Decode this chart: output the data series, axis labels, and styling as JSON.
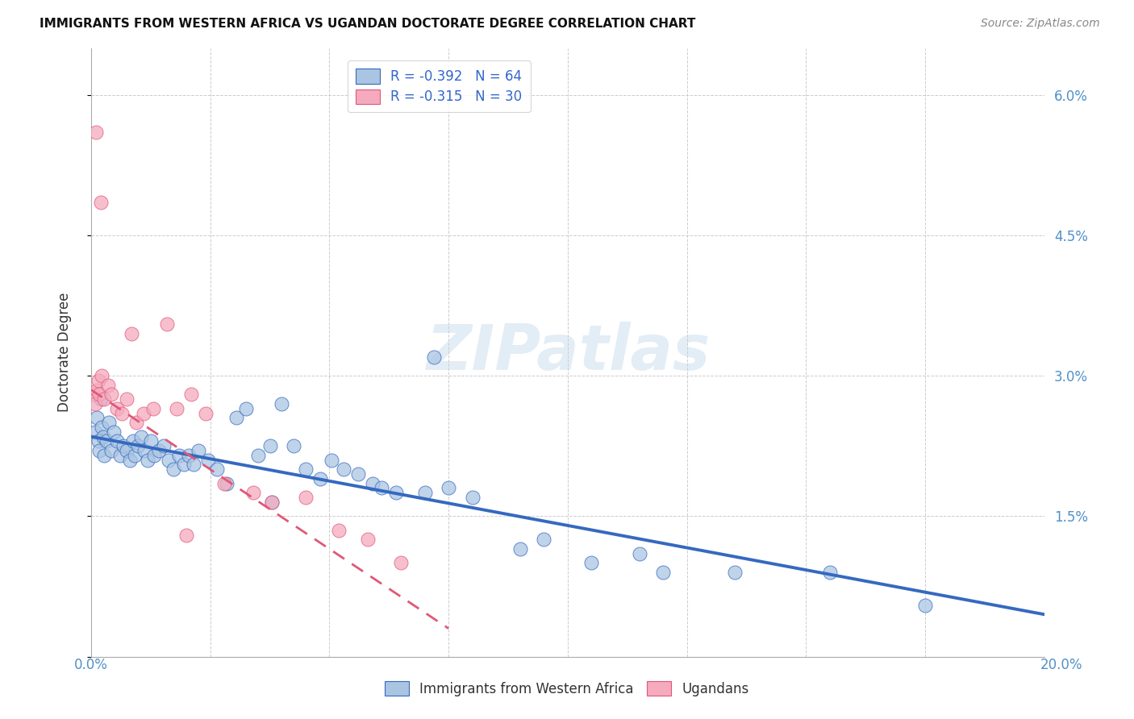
{
  "title": "IMMIGRANTS FROM WESTERN AFRICA VS UGANDAN DOCTORATE DEGREE CORRELATION CHART",
  "source": "Source: ZipAtlas.com",
  "ylabel": "Doctorate Degree",
  "xlim": [
    0,
    20.0
  ],
  "ylim": [
    0,
    6.5
  ],
  "ytick_values": [
    0,
    1.5,
    3.0,
    4.5,
    6.0
  ],
  "ytick_labels": [
    "",
    "1.5%",
    "3.0%",
    "4.5%",
    "6.0%"
  ],
  "legend_r1": "R = -0.392   N = 64",
  "legend_r2": "R = -0.315   N = 30",
  "blue_color": "#aac5e2",
  "pink_color": "#f5aabe",
  "blue_line_color": "#3569c0",
  "pink_line_color": "#e05878",
  "watermark": "ZIPatlas",
  "blue_line_x0": 0.0,
  "blue_line_y0": 2.35,
  "blue_line_x1": 20.0,
  "blue_line_y1": 0.45,
  "pink_line_x0": 0.0,
  "pink_line_y0": 2.85,
  "pink_line_x1": 7.5,
  "pink_line_y1": 0.3,
  "blue_scatter_x": [
    0.08,
    0.12,
    0.15,
    0.18,
    0.22,
    0.25,
    0.28,
    0.32,
    0.38,
    0.42,
    0.48,
    0.55,
    0.62,
    0.68,
    0.75,
    0.82,
    0.88,
    0.92,
    0.98,
    1.05,
    1.12,
    1.18,
    1.25,
    1.32,
    1.42,
    1.52,
    1.62,
    1.72,
    1.85,
    1.95,
    2.05,
    2.15,
    2.25,
    2.45,
    2.65,
    2.85,
    3.05,
    3.25,
    3.5,
    3.75,
    4.0,
    4.25,
    4.5,
    4.8,
    5.05,
    5.3,
    5.6,
    5.9,
    6.1,
    6.4,
    7.0,
    7.5,
    8.0,
    9.0,
    9.5,
    10.5,
    11.5,
    12.0,
    13.5,
    15.5,
    17.5,
    0.2,
    3.8,
    7.2
  ],
  "blue_scatter_y": [
    2.4,
    2.55,
    2.3,
    2.2,
    2.45,
    2.35,
    2.15,
    2.3,
    2.5,
    2.2,
    2.4,
    2.3,
    2.15,
    2.25,
    2.2,
    2.1,
    2.3,
    2.15,
    2.25,
    2.35,
    2.2,
    2.1,
    2.3,
    2.15,
    2.2,
    2.25,
    2.1,
    2.0,
    2.15,
    2.05,
    2.15,
    2.05,
    2.2,
    2.1,
    2.0,
    1.85,
    2.55,
    2.65,
    2.15,
    2.25,
    2.7,
    2.25,
    2.0,
    1.9,
    2.1,
    2.0,
    1.95,
    1.85,
    1.8,
    1.75,
    1.75,
    1.8,
    1.7,
    1.15,
    1.25,
    1.0,
    1.1,
    0.9,
    0.9,
    0.9,
    0.55,
    2.75,
    1.65,
    3.2
  ],
  "pink_scatter_x": [
    0.05,
    0.08,
    0.12,
    0.15,
    0.18,
    0.22,
    0.28,
    0.35,
    0.42,
    0.55,
    0.65,
    0.75,
    0.85,
    0.95,
    1.1,
    1.3,
    1.6,
    1.8,
    2.1,
    2.4,
    2.8,
    3.4,
    3.8,
    4.5,
    5.2,
    5.8,
    6.5,
    0.1,
    0.2,
    2.0
  ],
  "pink_scatter_y": [
    2.8,
    2.7,
    2.85,
    2.95,
    2.8,
    3.0,
    2.75,
    2.9,
    2.8,
    2.65,
    2.6,
    2.75,
    3.45,
    2.5,
    2.6,
    2.65,
    3.55,
    2.65,
    2.8,
    2.6,
    1.85,
    1.75,
    1.65,
    1.7,
    1.35,
    1.25,
    1.0,
    5.6,
    4.85,
    1.3
  ]
}
